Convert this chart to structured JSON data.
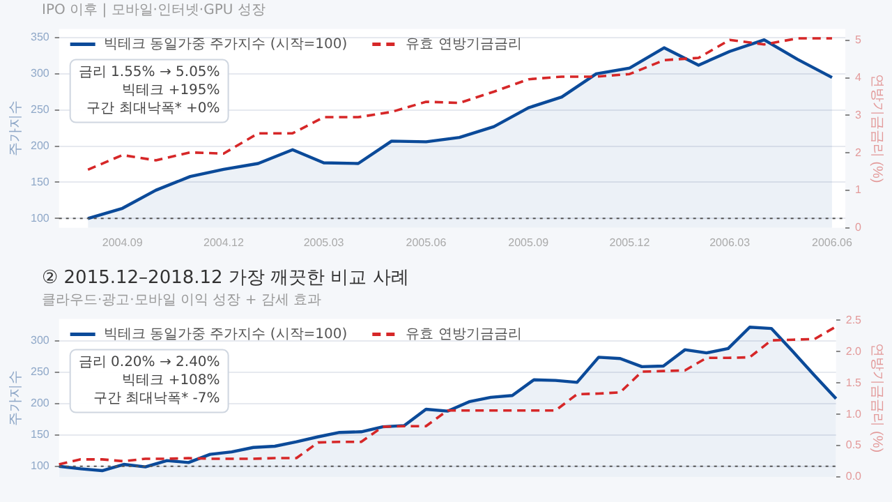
{
  "chart_data": [
    {
      "type": "line",
      "subtitle": "IPO 이후 | 모바일·인터넷·GPU 성장",
      "ylabel": "주가지수",
      "y2label": "연방기금금리 (%)",
      "x": [
        "2004-08",
        "2004-09",
        "2004-10",
        "2004-11",
        "2004-12",
        "2005-01",
        "2005-02",
        "2005-03",
        "2005-04",
        "2005-05",
        "2005-06",
        "2005-07",
        "2005-08",
        "2005-09",
        "2005-10",
        "2005-11",
        "2005-12",
        "2006-01",
        "2006-02",
        "2006-03",
        "2006-04",
        "2006-05",
        "2006-06"
      ],
      "xlim": [
        "2004-07-06",
        "2006-06-13"
      ],
      "xticks": [
        {
          "value": "2004-09",
          "label": "2004.09"
        },
        {
          "value": "2004-12",
          "label": "2004.12"
        },
        {
          "value": "2005-03",
          "label": "2005.03"
        },
        {
          "value": "2005-06",
          "label": "2005.06"
        },
        {
          "value": "2005-09",
          "label": "2005.09"
        },
        {
          "value": "2005-12",
          "label": "2005.12"
        },
        {
          "value": "2006-03",
          "label": "2006.03"
        },
        {
          "value": "2006-06",
          "label": "2006.06"
        }
      ],
      "series": [
        {
          "name": "빅테크 동일가중 주가지수 (시작=100)",
          "type": "area",
          "color": "#0b4a99",
          "values": [
            100,
            114,
            139,
            158,
            168,
            176,
            195,
            177,
            176,
            207,
            206,
            212,
            227,
            253,
            268,
            300,
            308,
            336,
            312,
            331,
            347,
            320,
            295
          ]
        },
        {
          "name": "유효 연방기금금리",
          "type": "line",
          "axis": "y2",
          "line_style": "dashed",
          "color": "#d62728",
          "values": [
            1.55,
            1.94,
            1.8,
            2.01,
            1.98,
            2.52,
            2.52,
            2.95,
            2.95,
            3.09,
            3.36,
            3.33,
            3.63,
            3.96,
            4.03,
            4.03,
            4.1,
            4.47,
            4.53,
            5.01,
            4.89,
            5.05,
            5.05
          ]
        }
      ],
      "ylim": [
        87,
        362
      ],
      "yticks": [
        100,
        150,
        200,
        250,
        300,
        350
      ],
      "y2lim": [
        0,
        5.3
      ],
      "y2ticks": [
        0,
        1,
        2,
        3,
        4,
        5
      ],
      "ref_lines": [
        {
          "axis": "y",
          "value": 100,
          "color": "#555555",
          "line_style": "dotted"
        }
      ],
      "annotations": [
        "금리 1.55% → 5.05%",
        "빅테크 +195%",
        "구간 최대낙폭* +0%"
      ],
      "grid": "y",
      "legend": "top left",
      "marker": "none"
    },
    {
      "type": "line",
      "title": "② 2015.12–2018.12  가장 깨끗한 비교 사례",
      "subtitle": "클라우드·광고·모바일 이익 성장 + 감세 효과",
      "ylabel": "주가지수",
      "y2label": "연방기금금리 (%)",
      "categories": [
        null,
        null,
        null,
        null,
        null,
        null,
        null,
        null,
        null,
        null,
        null,
        null,
        null,
        null,
        null,
        null,
        null,
        null,
        null,
        null,
        null,
        null,
        null,
        null,
        null,
        null,
        null,
        null,
        null,
        null,
        null,
        null,
        null,
        null,
        null,
        null,
        null
      ],
      "series": [
        {
          "name": "빅테크 동일가중 주가지수 (시작=100)",
          "type": "area",
          "color": "#0b4a99",
          "values": [
            100,
            96,
            93,
            103,
            99,
            109,
            106,
            119,
            123,
            130,
            132,
            139,
            147,
            154,
            155,
            163,
            165,
            191,
            188,
            203,
            210,
            213,
            238,
            237,
            234,
            274,
            272,
            259,
            260,
            286,
            281,
            288,
            322,
            320,
            283,
            245,
            208
          ]
        },
        {
          "name": "유효 연방기금금리",
          "type": "line",
          "axis": "y2",
          "line_style": "dashed",
          "color": "#d62728",
          "values": [
            0.2,
            0.28,
            0.28,
            0.25,
            0.29,
            0.29,
            0.3,
            0.29,
            0.29,
            0.29,
            0.3,
            0.3,
            0.55,
            0.56,
            0.56,
            0.8,
            0.81,
            0.81,
            1.06,
            1.06,
            1.06,
            1.06,
            1.06,
            1.06,
            1.32,
            1.33,
            1.35,
            1.68,
            1.69,
            1.7,
            1.9,
            1.9,
            1.91,
            2.18,
            2.19,
            2.2,
            2.4
          ]
        }
      ],
      "ylim": [
        83,
        335
      ],
      "yticks": [
        100,
        150,
        200,
        250,
        300
      ],
      "y2lim": [
        0,
        2.52
      ],
      "y2ticks": [
        {
          "value": 0,
          "label": "0.0"
        },
        0.5,
        {
          "value": 1,
          "label": "1.0"
        },
        1.5,
        {
          "value": 2,
          "label": "2.0"
        },
        2.5
      ],
      "ref_lines": [
        {
          "axis": "y",
          "value": 100,
          "color": "#555555",
          "line_style": "dotted"
        }
      ],
      "annotations": [
        "금리 0.20% → 2.40%",
        "빅테크 +108%",
        "구간 최대낙폭* -7%"
      ],
      "grid": "y",
      "legend": "top left",
      "marker": "none"
    }
  ]
}
